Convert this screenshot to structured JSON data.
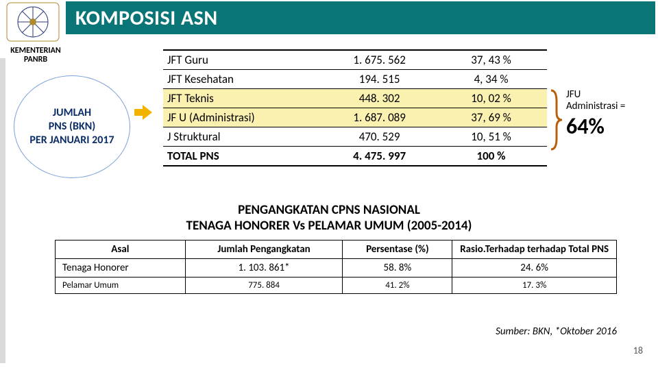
{
  "title": "KOMPOSISI ASN",
  "org": "KEMENTERIAN PANRB",
  "circle": {
    "l1": "JUMLAH",
    "l2": "PNS (BKN)",
    "l3": "PER JANUARI 2017"
  },
  "table1": {
    "rows": [
      {
        "label": "JFT Guru",
        "value": "1. 675. 562",
        "pct": "37, 43 %",
        "hl": false
      },
      {
        "label": "JFT Kesehatan",
        "value": "194. 515",
        "pct": "4, 34 %",
        "hl": false
      },
      {
        "label": "JFT Teknis",
        "value": "448. 302",
        "pct": "10, 02 %",
        "hl": true
      },
      {
        "label": "JF U (Administrasi)",
        "value": "1. 687. 089",
        "pct": "37, 69 %",
        "hl": true
      },
      {
        "label": "J Struktural",
        "value": "470. 529",
        "pct": "10, 51 %",
        "hl": false
      },
      {
        "label": "TOTAL PNS",
        "value": "4. 475. 997",
        "pct": "100 %",
        "hl": false,
        "bold": true
      }
    ]
  },
  "sideNote": {
    "line1": "JFU",
    "line2": "Administrasi =",
    "big": "64%"
  },
  "midTitle": {
    "l1": "PENGANGKATAN CPNS NASIONAL",
    "l2": "TENAGA HONORER Vs PELAMAR UMUM (2005-2014)"
  },
  "table2": {
    "headers": {
      "h1": "Asal",
      "h2": "Jumlah Pengangkatan",
      "h3": "Persentase (%)",
      "h4": "Rasio.Terhadap terhadap Total PNS"
    },
    "rows": [
      {
        "c1": "Tenaga Honorer",
        "c2": "1. 103. 861*",
        "c3": "58. 8%",
        "c4": "24. 6%",
        "small": false
      },
      {
        "c1": "Pelamar Umum",
        "c2": "775. 884",
        "c3": "41. 2%",
        "c4": "17. 3%",
        "small": true
      }
    ]
  },
  "source": "Sumber: BKN, *Oktober 2016",
  "page": "18",
  "colors": {
    "titleBg": "#0a7576",
    "highlight": "#faf0b0",
    "arrow": "#f2b200",
    "bracket": "#b85f09",
    "circleBorder": "#7aa0d8",
    "circleText": "#0b2e66"
  }
}
